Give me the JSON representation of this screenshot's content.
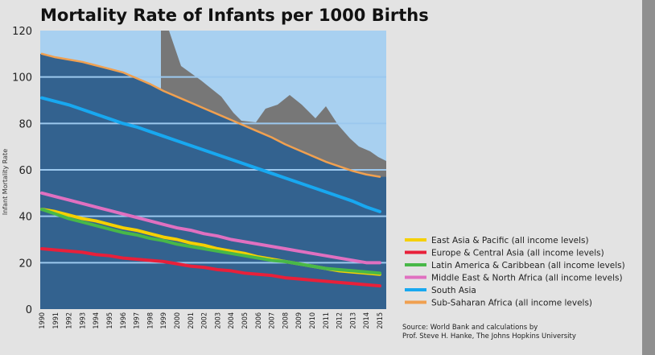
{
  "chart_data": {
    "type": "line",
    "title": "Mortality Rate of Infants per 1000 Births",
    "ylabel": "Infant Mortality Rate",
    "xlabel": "",
    "ylim": [
      0,
      120
    ],
    "yticks": [
      0,
      20,
      40,
      60,
      80,
      100,
      120
    ],
    "x": [
      "1990",
      "1991",
      "1992",
      "1993",
      "1994",
      "1995",
      "1996",
      "1997",
      "1998",
      "1999",
      "2000",
      "2001",
      "2002",
      "2003",
      "2004",
      "2005",
      "2006",
      "2007",
      "2008",
      "2009",
      "2010",
      "2011",
      "2012",
      "2013",
      "2014",
      "2015"
    ],
    "grid": true,
    "legend_position": "bottom-right",
    "series": [
      {
        "name": "East Asia & Pacific (all income levels)",
        "color": "#f5d000",
        "values": [
          43,
          42,
          40.5,
          39,
          38,
          36.5,
          35,
          34,
          32.5,
          31,
          30,
          28.5,
          27.5,
          26,
          25,
          24,
          22.5,
          21.5,
          20.5,
          19.5,
          18.5,
          17.5,
          16.5,
          16,
          15.5,
          15
        ]
      },
      {
        "name": "Europe & Central Asia (all income levels)",
        "color": "#e8203a",
        "values": [
          26,
          25.5,
          25,
          24.5,
          23.5,
          23,
          22,
          21.5,
          21,
          20.5,
          19.5,
          18.5,
          18,
          17,
          16.5,
          15.5,
          15,
          14.5,
          13.5,
          13,
          12.5,
          12,
          11.5,
          11,
          10.5,
          10
        ]
      },
      {
        "name": "Latin America & Caribbean (all income levels)",
        "color": "#48b848",
        "values": [
          43,
          41,
          39,
          37.5,
          36,
          34.5,
          33,
          32,
          30.5,
          29.5,
          28,
          27,
          26,
          25,
          24,
          23,
          22,
          21,
          20.5,
          19.5,
          18.5,
          17.5,
          17,
          16.5,
          16,
          15.5
        ]
      },
      {
        "name": "Middle East & North Africa (all income levels)",
        "color": "#e070c0",
        "values": [
          50,
          48.5,
          47,
          45.5,
          44,
          42.5,
          41,
          39.5,
          38,
          36.5,
          35,
          34,
          32.5,
          31.5,
          30,
          29,
          28,
          27,
          26,
          25,
          24,
          23,
          22,
          21,
          20,
          20
        ]
      },
      {
        "name": "South Asia",
        "color": "#18a8f0",
        "values": [
          91,
          89.5,
          88,
          86,
          84,
          82,
          80,
          78.5,
          76.5,
          74.5,
          72.5,
          70.5,
          68.5,
          66.5,
          64.5,
          62.5,
          60.5,
          58.5,
          56.5,
          54.5,
          52.5,
          50.5,
          48.5,
          46.5,
          44,
          42
        ]
      },
      {
        "name": "Sub-Saharan Africa (all income levels)",
        "color": "#f0a050",
        "values": [
          110,
          108.5,
          107.5,
          106.5,
          105,
          103.5,
          102,
          99.5,
          97,
          94,
          91.5,
          89,
          86.5,
          84,
          81.5,
          79,
          76.5,
          74,
          71,
          68.5,
          66,
          63.5,
          61.5,
          59.5,
          58,
          57
        ]
      }
    ],
    "source": [
      "Source: World Bank and calculations by",
      "Prof. Steve H. Hanke, The Johns Hopkins University"
    ],
    "colors": {
      "plot_background": "#a8d0f0",
      "fill_area": "#33628f",
      "map_silhouette": "#777777",
      "page_background": "#e3e3e3"
    }
  }
}
